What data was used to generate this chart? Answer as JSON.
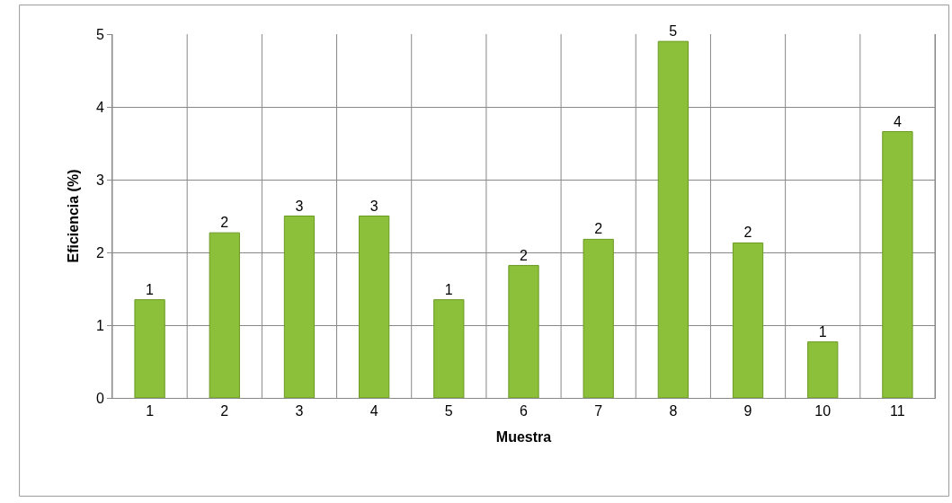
{
  "chart_data": {
    "type": "bar",
    "xlabel": "Muestra",
    "ylabel": "Eficiencia (%)",
    "categories": [
      "1",
      "2",
      "3",
      "4",
      "5",
      "6",
      "7",
      "8",
      "9",
      "10",
      "11"
    ],
    "values": [
      1.35,
      2.27,
      2.5,
      2.5,
      1.35,
      1.82,
      2.18,
      4.9,
      2.13,
      0.77,
      3.66
    ],
    "value_labels": [
      "1",
      "2",
      "3",
      "3",
      "1",
      "2",
      "2",
      "5",
      "2",
      "1",
      "4"
    ],
    "color": "#8cc03a",
    "ylim": [
      0,
      5
    ],
    "yticks": [
      0,
      1,
      2,
      3,
      4,
      5
    ],
    "grid": true
  }
}
